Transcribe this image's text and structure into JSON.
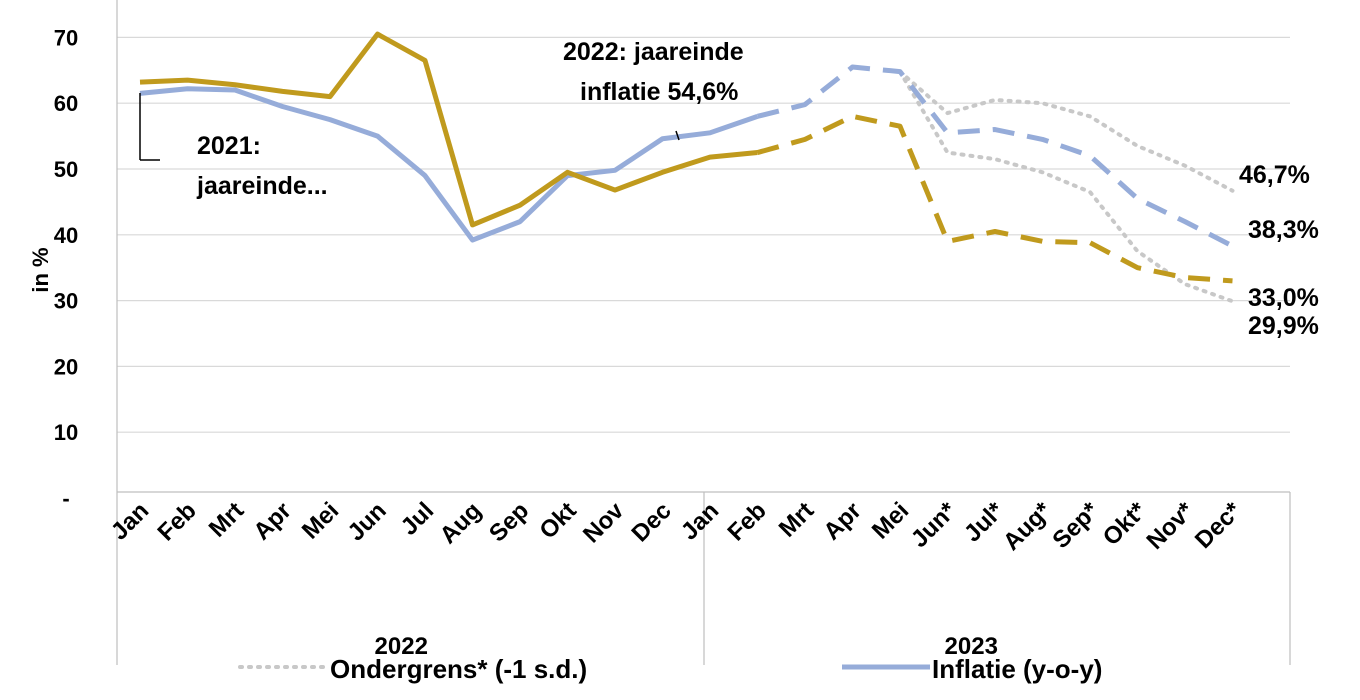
{
  "chart_data": {
    "type": "line",
    "ylabel": "in %",
    "ylim": [
      0,
      75
    ],
    "yticks": [
      {
        "value": 0,
        "label": "-"
      },
      {
        "value": 10,
        "label": "10"
      },
      {
        "value": 20,
        "label": "20"
      },
      {
        "value": 30,
        "label": "30"
      },
      {
        "value": 40,
        "label": "40"
      },
      {
        "value": 50,
        "label": "50"
      },
      {
        "value": 60,
        "label": "60"
      },
      {
        "value": 70,
        "label": "70"
      }
    ],
    "grid": "horizontal",
    "categories": [
      "Jan",
      "Feb",
      "Mrt",
      "Apr",
      "Mei",
      "Jun",
      "Jul",
      "Aug",
      "Sep",
      "Okt",
      "Nov",
      "Dec",
      "Jan",
      "Feb",
      "Mrt",
      "Apr",
      "Mei",
      "Jun*",
      "Jul*",
      "Aug*",
      "Sep*",
      "Okt*",
      "Nov*",
      "Dec*"
    ],
    "groups": [
      {
        "label": "2022",
        "start": 0,
        "end": 11
      },
      {
        "label": "2023",
        "start": 12,
        "end": 23
      }
    ],
    "series": [
      {
        "name": "Inflatie (y-o-y)",
        "color": "#96acd9",
        "values": [
          61.5,
          62.2,
          62.0,
          59.5,
          57.5,
          55.0,
          49.0,
          39.2,
          42.0,
          49.0,
          49.8,
          54.6,
          55.5,
          58.0,
          59.8,
          65.5,
          64.8,
          55.5,
          56.0,
          54.5,
          52.0,
          45.5,
          42.0,
          38.3
        ],
        "solid_until_index": 13,
        "dashed_from_index": 13
      },
      {
        "color": "#c09a1d",
        "values": [
          63.2,
          63.5,
          62.8,
          61.8,
          61.0,
          70.5,
          66.5,
          41.5,
          44.5,
          49.5,
          46.8,
          49.5,
          51.8,
          52.5,
          54.5,
          58.0,
          56.5,
          39.0,
          40.5,
          39.0,
          38.8,
          35.0,
          33.5,
          33.0
        ],
        "solid_until_index": 13,
        "dashed_from_index": 13
      },
      {
        "name": "Ondergrens* (-1 s.d.)",
        "color": "#c8c8c8",
        "values": [
          null,
          null,
          null,
          null,
          null,
          null,
          null,
          null,
          null,
          null,
          null,
          null,
          null,
          null,
          null,
          null,
          64.8,
          52.5,
          51.5,
          49.5,
          46.5,
          37.5,
          32.5,
          29.9
        ],
        "dotted": true
      },
      {
        "color": "#c8c8c8",
        "values": [
          null,
          null,
          null,
          null,
          null,
          null,
          null,
          null,
          null,
          null,
          null,
          null,
          null,
          null,
          null,
          null,
          64.8,
          58.5,
          60.5,
          60.0,
          58.0,
          53.5,
          50.5,
          46.7
        ],
        "dotted": true
      }
    ],
    "annotations": [
      {
        "id": "a2021",
        "lines": [
          "2021:",
          "jaareinde..."
        ]
      },
      {
        "id": "a2022",
        "lines": [
          "2022: jaareinde",
          "inflatie 54,6%"
        ]
      }
    ],
    "end_labels": [
      "46,7%",
      "38,3%",
      "33,0%",
      "29,9%"
    ],
    "legend_position": "bottom"
  }
}
